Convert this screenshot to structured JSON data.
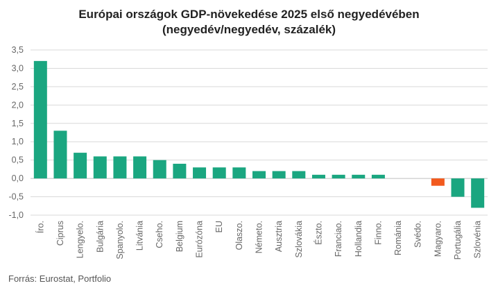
{
  "chart_data": {
    "type": "bar",
    "title": "Európai országok GDP-növekedése 2025 első negyedévében",
    "subtitle": "(negyedév/negyedév, százalék)",
    "source": "Forrás: Eurostat, Portfolio",
    "categories": [
      "Íro.",
      "Ciprus",
      "Lengyelo.",
      "Bulgária",
      "Spanyolo.",
      "Litvánia",
      "Cseho.",
      "Belgium",
      "Eurózóna",
      "EU",
      "Olaszo.",
      "Németo.",
      "Ausztria",
      "Szlovákia",
      "Észto.",
      "Franciao.",
      "Hollandia",
      "Finno.",
      "Románia",
      "Svédo.",
      "Magyaro.",
      "Portugália",
      "Szlovénia"
    ],
    "values": [
      3.2,
      1.3,
      0.7,
      0.6,
      0.6,
      0.6,
      0.5,
      0.4,
      0.3,
      0.3,
      0.3,
      0.2,
      0.2,
      0.2,
      0.1,
      0.1,
      0.1,
      0.1,
      0.0,
      0.0,
      -0.2,
      -0.5,
      -0.8
    ],
    "highlight_category": "Magyaro.",
    "ylim": [
      -1.0,
      3.5
    ],
    "yticks": [
      "3,5",
      "3,0",
      "2,5",
      "2,0",
      "1,5",
      "1,0",
      "0,5",
      "0,0",
      "-0,5",
      "-1,0"
    ],
    "ytick_values": [
      3.5,
      3.0,
      2.5,
      2.0,
      1.5,
      1.0,
      0.5,
      0.0,
      -0.5,
      -1.0
    ],
    "grid": true,
    "colors": {
      "bar": "#1aa680",
      "highlight": "#f25a1e",
      "grid": "#d9d9d9",
      "zero_line": "#bfbfbf"
    }
  }
}
